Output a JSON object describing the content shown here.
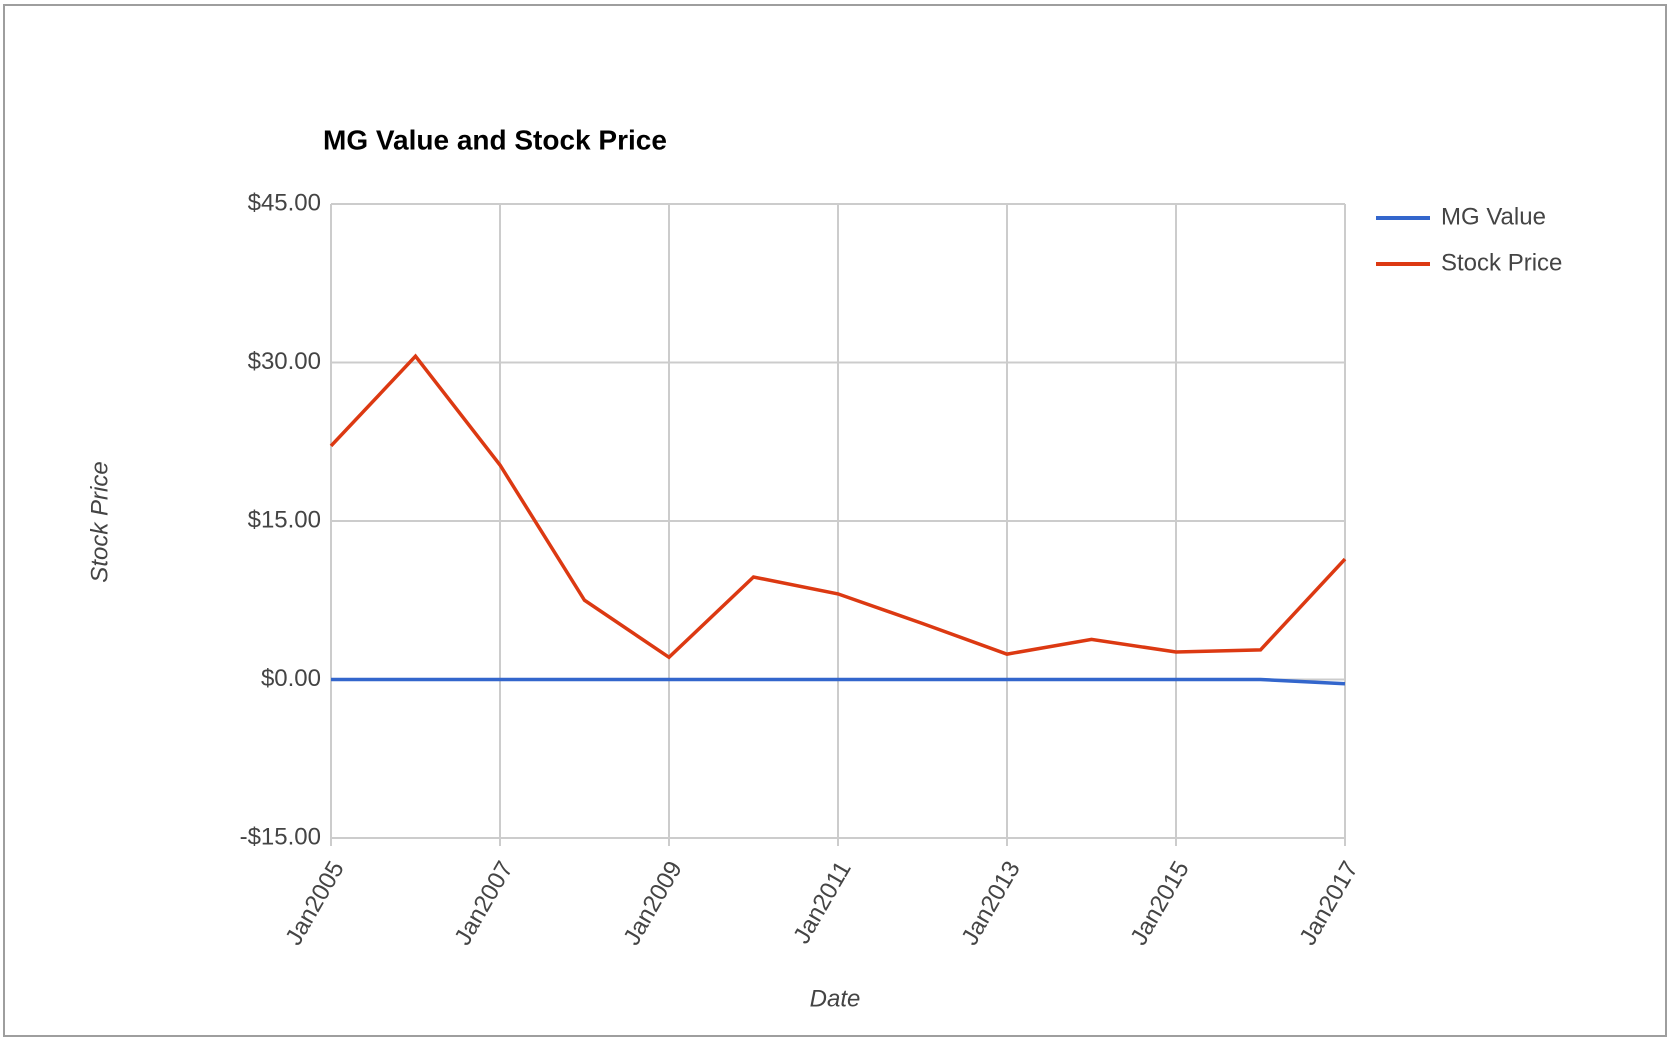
{
  "chart_data": {
    "type": "line",
    "title": "MG Value and Stock Price",
    "x_label": "Date",
    "y_label": "Stock Price",
    "categories": [
      "Jan2005",
      null,
      "Jan2007",
      null,
      "Jan2009",
      null,
      "Jan2011",
      null,
      "Jan2013",
      null,
      "Jan2015",
      null,
      "Jan2017"
    ],
    "series": [
      {
        "name": "MG Value",
        "color": "#3366cc",
        "values": [
          0,
          0,
          0,
          0,
          0,
          0,
          0,
          0,
          0,
          0,
          0,
          0,
          -0.4
        ]
      },
      {
        "name": "Stock Price",
        "color": "#dc3912",
        "values": [
          22.1,
          30.6,
          20.3,
          7.5,
          2.1,
          9.7,
          8.1,
          5.3,
          2.4,
          3.8,
          2.6,
          2.8,
          11.4
        ]
      }
    ],
    "ylim": [
      -15,
      45
    ],
    "yticks": [
      {
        "value": -15,
        "label": "-$15.00"
      },
      {
        "value": 0,
        "label": "$0.00"
      },
      {
        "value": 15,
        "label": "$15.00"
      },
      {
        "value": 30,
        "label": "$30.00"
      },
      {
        "value": 45,
        "label": "$45.00"
      }
    ],
    "grid": true,
    "legend": "right"
  }
}
